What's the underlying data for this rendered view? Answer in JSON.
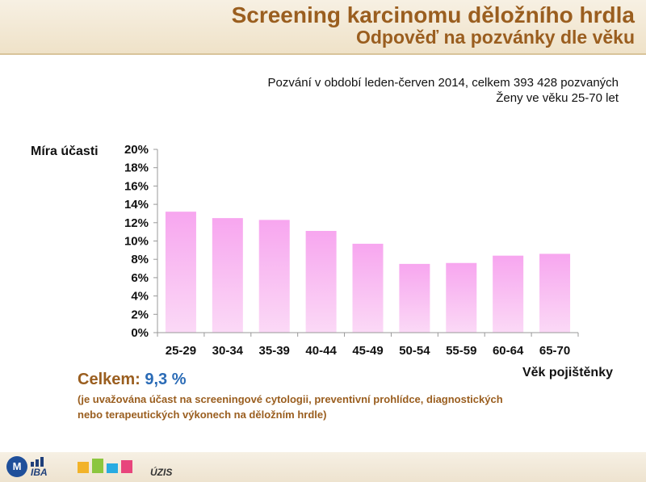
{
  "header": {
    "title": "Screening karcinomu děložního hrdla",
    "subtitle": "Odpověď na pozvánky dle věku"
  },
  "info": {
    "line1": "Pozvání v období leden-červen 2014, celkem 393 428 pozvaných",
    "line2": "Ženy ve věku 25-70 let"
  },
  "chart_data": {
    "type": "bar",
    "ylabel": "Míra účasti",
    "xlabel": "Věk pojištěnky",
    "categories": [
      "25-29",
      "30-34",
      "35-39",
      "40-44",
      "45-49",
      "50-54",
      "55-59",
      "60-64",
      "65-70"
    ],
    "values": [
      13.2,
      12.5,
      12.3,
      11.1,
      9.7,
      7.5,
      7.6,
      8.4,
      8.6
    ],
    "ylim": [
      0,
      20
    ],
    "yticks": [
      0,
      2,
      4,
      6,
      8,
      10,
      12,
      14,
      16,
      18,
      20
    ],
    "ytick_suffix": "%",
    "bar_color_top": "#f7a6ef",
    "bar_color_bottom": "#fbd9f6",
    "grid": false
  },
  "summary": {
    "total_label": "Celkem:",
    "total_value": "9,3 %",
    "note": "(je uvažována účast na screeningové cytologii, preventivní prohlídce, diagnostických nebo terapeutických výkonech na děložním hrdle)"
  },
  "footer": {
    "logo_mu": "M",
    "logo_iba": "IBA",
    "logo_uzis": "ÚZIS"
  }
}
